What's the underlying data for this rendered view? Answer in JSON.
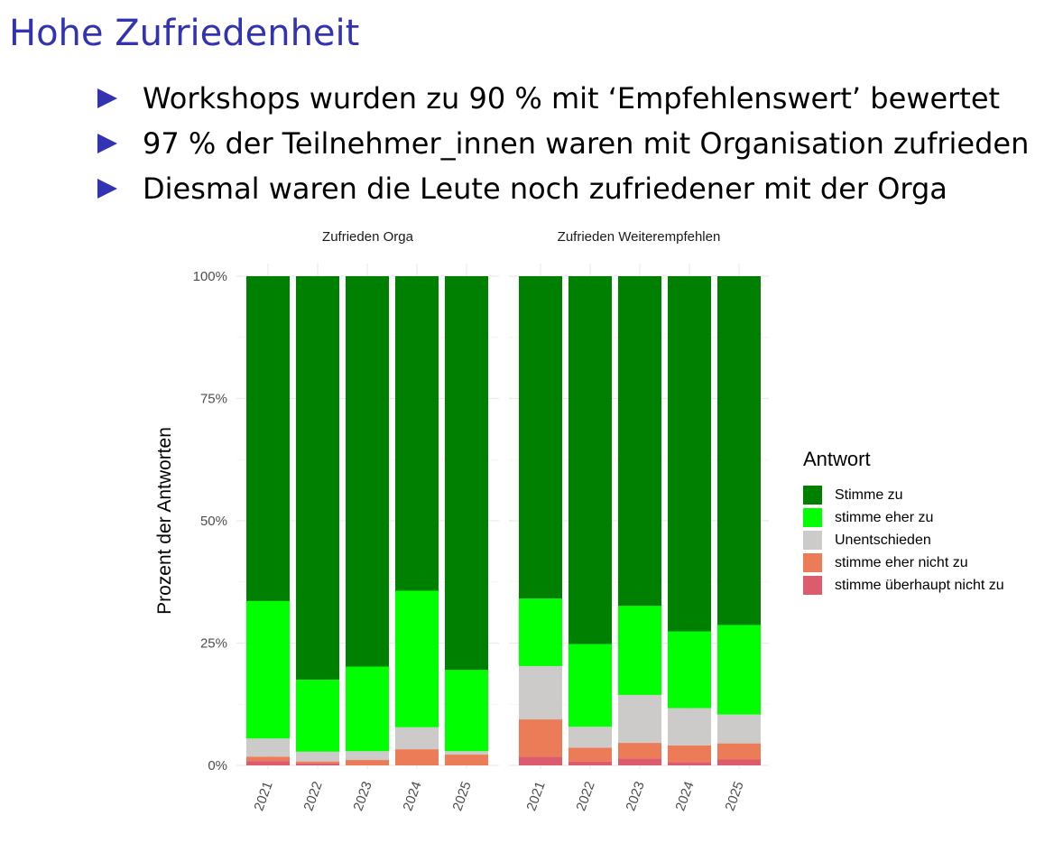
{
  "slide": {
    "title": "Hohe Zufriedenheit",
    "bullets": [
      "Workshops wurden zu 90 % mit ‘Empfehlenswert’ bewertet",
      "97 % der Teilnehmer_innen waren mit Organisation zufrieden",
      "Diesmal waren die Leute noch zufriedener mit der Orga"
    ]
  },
  "chart_data": {
    "type": "bar",
    "stacked": true,
    "ylabel": "Prozent der Antworten",
    "ylim": [
      0,
      1
    ],
    "yticks": [
      0,
      0.25,
      0.5,
      0.75,
      1
    ],
    "ytick_labels": [
      "0%",
      "25%",
      "50%",
      "75%",
      "100%"
    ],
    "grid": true,
    "legend": {
      "title": "Antwort",
      "position": "right",
      "items": [
        {
          "label": "Stimme zu",
          "color": "#008000"
        },
        {
          "label": "stimme eher zu",
          "color": "#00ff00"
        },
        {
          "label": "Unentschieden",
          "color": "#cdcaca"
        },
        {
          "label": "stimme eher nicht zu",
          "color": "#ec7c58"
        },
        {
          "label": "stimme überhaupt nicht zu",
          "color": "#dc5b6d"
        }
      ]
    },
    "facets": [
      {
        "title": "Zufrieden Orga",
        "categories": [
          "2021",
          "2022",
          "2023",
          "2024",
          "2025"
        ],
        "series": [
          {
            "name": "stimme überhaupt nicht zu",
            "values": [
              0.009,
              0.004,
              0.0,
              0.0,
              0.0
            ]
          },
          {
            "name": "stimme eher nicht zu",
            "values": [
              0.009,
              0.004,
              0.011,
              0.033,
              0.022
            ]
          },
          {
            "name": "Unentschieden",
            "values": [
              0.037,
              0.02,
              0.018,
              0.045,
              0.007
            ]
          },
          {
            "name": "stimme eher zu",
            "values": [
              0.281,
              0.147,
              0.173,
              0.279,
              0.166
            ]
          },
          {
            "name": "Stimme zu",
            "values": [
              0.664,
              0.825,
              0.798,
              0.643,
              0.805
            ]
          }
        ]
      },
      {
        "title": "Zufrieden Weiterempfehlen",
        "categories": [
          "2021",
          "2022",
          "2023",
          "2024",
          "2025"
        ],
        "series": [
          {
            "name": "stimme überhaupt nicht zu",
            "values": [
              0.018,
              0.008,
              0.014,
              0.007,
              0.012
            ]
          },
          {
            "name": "stimme eher nicht zu",
            "values": [
              0.076,
              0.028,
              0.032,
              0.034,
              0.033
            ]
          },
          {
            "name": "Unentschieden",
            "values": [
              0.109,
              0.043,
              0.098,
              0.076,
              0.059
            ]
          },
          {
            "name": "stimme eher zu",
            "values": [
              0.138,
              0.169,
              0.182,
              0.157,
              0.183
            ]
          },
          {
            "name": "Stimme zu",
            "values": [
              0.659,
              0.752,
              0.674,
              0.726,
              0.713
            ]
          }
        ]
      }
    ]
  }
}
